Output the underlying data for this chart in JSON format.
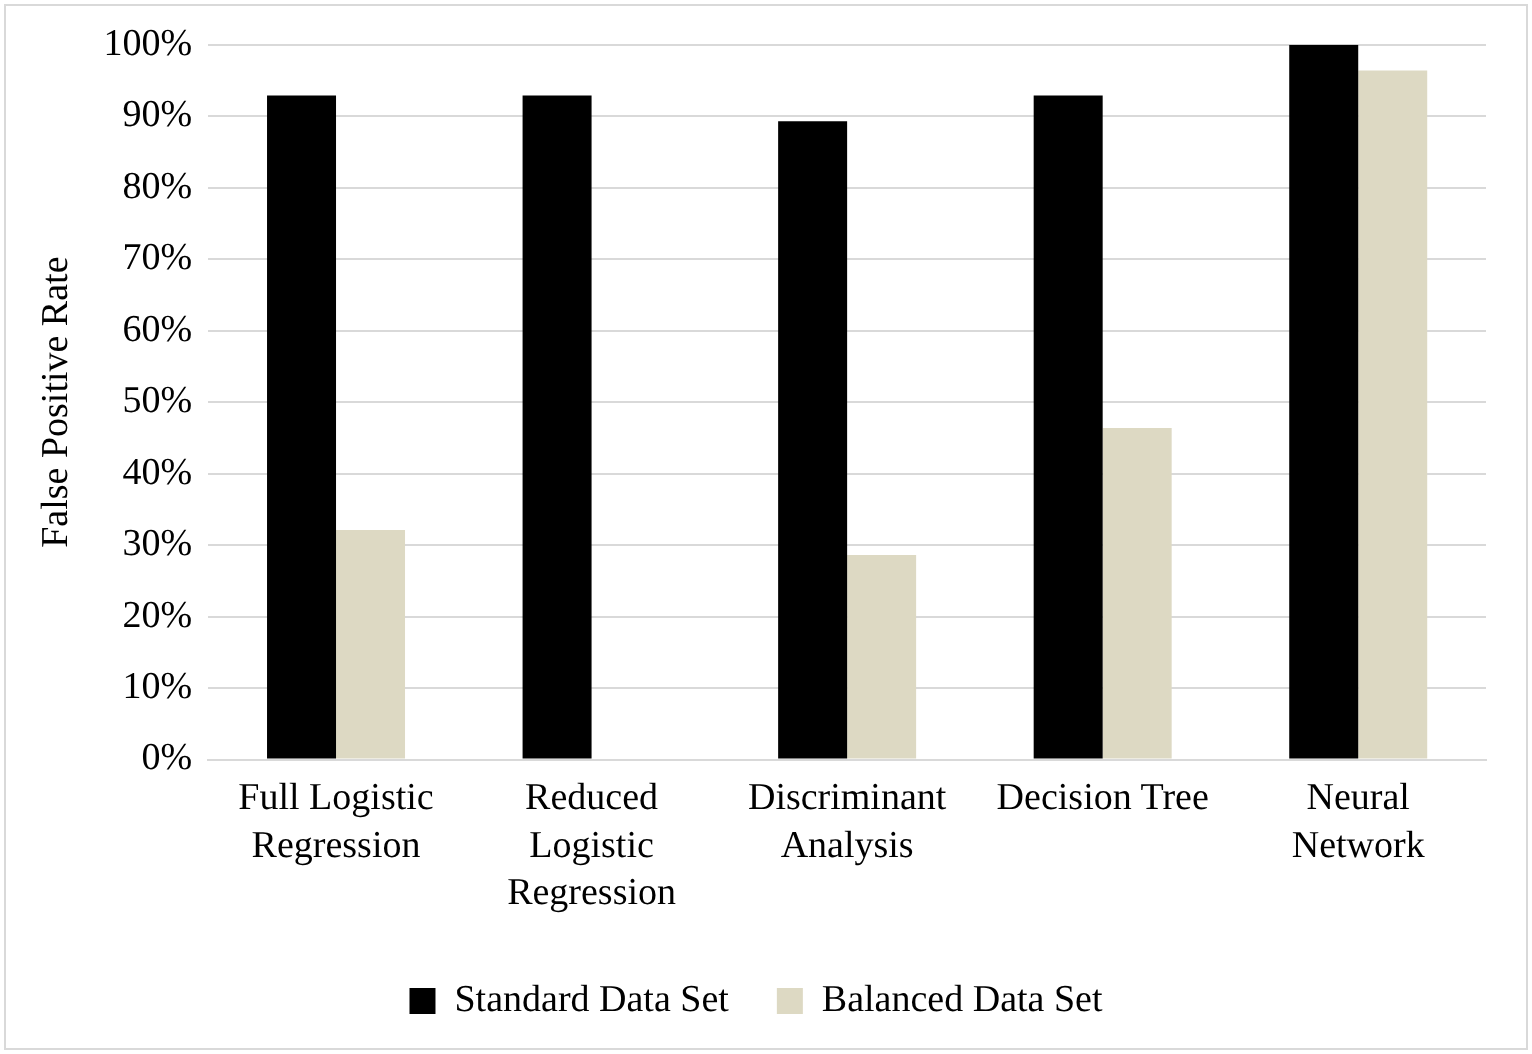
{
  "chart_data": {
    "type": "bar",
    "ylabel": "False Positive Rate",
    "categories": [
      "Full Logistic Regression",
      "Reduced Logistic Regression",
      "Discriminant Analysis",
      "Decision Tree",
      "Neural Network"
    ],
    "series": [
      {
        "name": "Standard Data Set",
        "color": "#000000",
        "values": [
          92.9,
          92.9,
          89.3,
          92.9,
          100
        ]
      },
      {
        "name": "Balanced Data Set",
        "color": "#ddd9c3",
        "values": [
          32.1,
          0,
          28.6,
          46.4,
          96.4
        ]
      }
    ],
    "ylim": [
      0,
      100
    ],
    "yticks": [
      {
        "value": 0,
        "label": "0%"
      },
      {
        "value": 10,
        "label": "10%"
      },
      {
        "value": 20,
        "label": "20%"
      },
      {
        "value": 30,
        "label": "30%"
      },
      {
        "value": 40,
        "label": "40%"
      },
      {
        "value": 50,
        "label": "50%"
      },
      {
        "value": 60,
        "label": "60%"
      },
      {
        "value": 70,
        "label": "70%"
      },
      {
        "value": 80,
        "label": "80%"
      },
      {
        "value": 90,
        "label": "90%"
      },
      {
        "value": 100,
        "label": "100%"
      }
    ],
    "grid": "y",
    "legend": "bottom"
  }
}
